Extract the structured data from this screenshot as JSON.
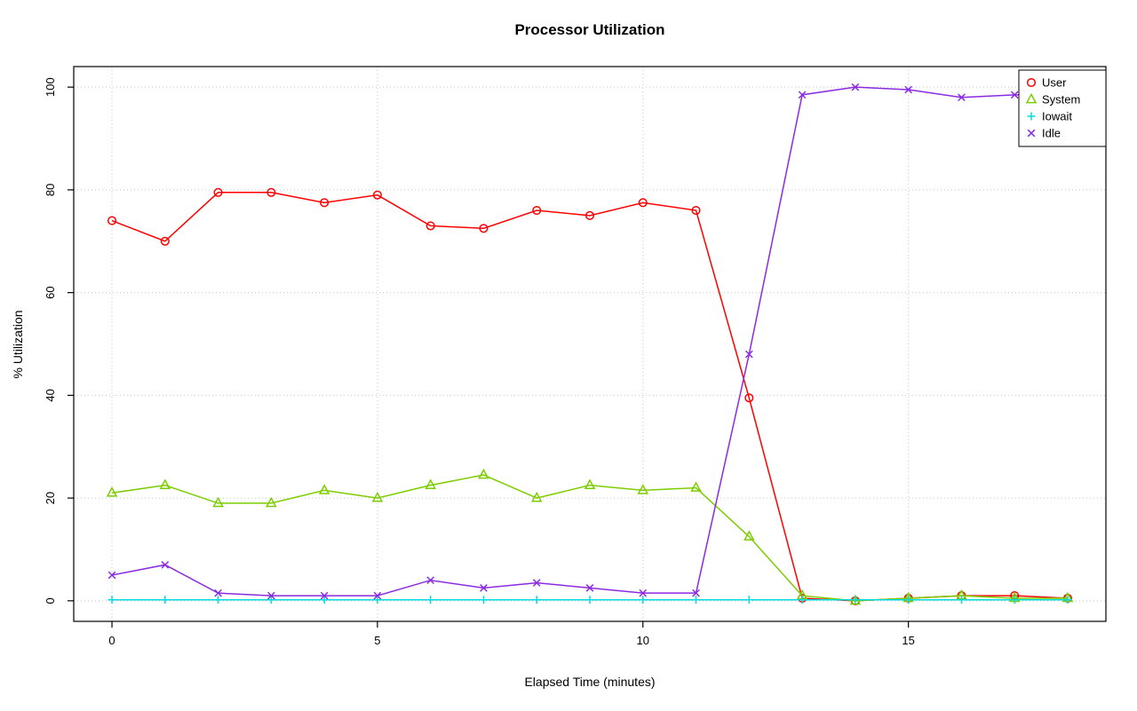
{
  "title": "Processor Utilization",
  "chart_data": {
    "type": "line",
    "title": "Processor Utilization",
    "xlabel": "Elapsed Time (minutes)",
    "ylabel": "% Utilization",
    "xlim": [
      0,
      18
    ],
    "ylim": [
      0,
      100
    ],
    "xticks": [
      0,
      5,
      10,
      15
    ],
    "yticks": [
      0,
      20,
      40,
      60,
      80,
      100
    ],
    "grid": true,
    "legend_position": "top-right",
    "x": [
      0,
      1,
      2,
      3,
      4,
      5,
      6,
      7,
      8,
      9,
      10,
      11,
      12,
      13,
      14,
      15,
      16,
      17,
      18
    ],
    "series": [
      {
        "name": "User",
        "marker": "circle",
        "color": "#ff0000",
        "values": [
          74,
          70,
          79.5,
          79.5,
          77.5,
          79,
          73,
          72.5,
          76,
          75,
          77.5,
          76,
          39.5,
          0.5,
          0,
          0.5,
          1,
          1,
          0.5
        ]
      },
      {
        "name": "System",
        "marker": "triangle",
        "color": "#7ccd00",
        "values": [
          21,
          22.5,
          19,
          19,
          21.5,
          20,
          22.5,
          24.5,
          20,
          22.5,
          21.5,
          22,
          12.5,
          1,
          0,
          0.5,
          1,
          0.5,
          0.5
        ]
      },
      {
        "name": "Iowait",
        "marker": "plus",
        "color": "#00dcdc",
        "values": [
          0.2,
          0.2,
          0.2,
          0.2,
          0.2,
          0.2,
          0.2,
          0.2,
          0.2,
          0.2,
          0.2,
          0.2,
          0.2,
          0.2,
          0.2,
          0.2,
          0.2,
          0.2,
          0.2
        ]
      },
      {
        "name": "Idle",
        "marker": "x",
        "color": "#8a2be2",
        "values": [
          5,
          7,
          1.5,
          1,
          1,
          1,
          4,
          2.5,
          3.5,
          2.5,
          1.5,
          1.5,
          48,
          98.5,
          100,
          99.5,
          98,
          98.5,
          98.5
        ]
      }
    ]
  }
}
